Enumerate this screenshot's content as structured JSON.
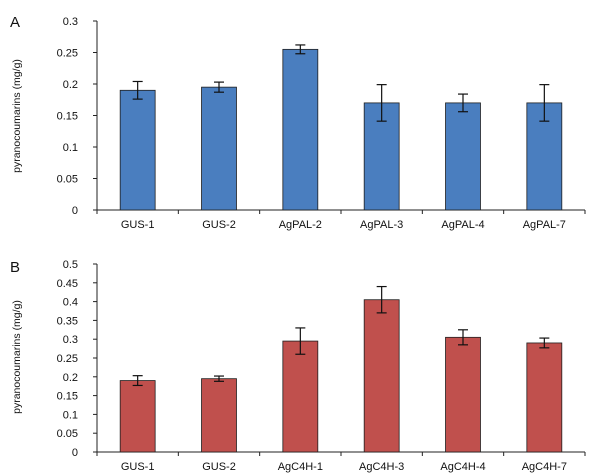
{
  "chart_data": [
    {
      "type": "bar",
      "panel": "A",
      "categories": [
        "GUS-1",
        "GUS-2",
        "AgPAL-2",
        "AgPAL-3",
        "AgPAL-4",
        "AgPAL-7"
      ],
      "values": [
        0.19,
        0.195,
        0.255,
        0.17,
        0.17,
        0.17
      ],
      "errors": [
        0.014,
        0.008,
        0.007,
        0.029,
        0.014,
        0.029
      ],
      "ylabel": "pyranocoumarins (mg/g)",
      "ylim": [
        0,
        0.3
      ],
      "yticks": [
        "0",
        "0.05",
        "0.1",
        "0.15",
        "0.2",
        "0.25",
        "0.3"
      ],
      "bar_color": "#4a7ebf",
      "grid": false
    },
    {
      "type": "bar",
      "panel": "B",
      "categories": [
        "GUS-1",
        "GUS-2",
        "AgC4H-1",
        "AgC4H-3",
        "AgC4H-4",
        "AgC4H-7"
      ],
      "values": [
        0.19,
        0.195,
        0.295,
        0.405,
        0.305,
        0.29
      ],
      "errors": [
        0.013,
        0.007,
        0.035,
        0.035,
        0.02,
        0.013
      ],
      "ylabel": "pyranocoumarins (mg/g)",
      "ylim": [
        0,
        0.5
      ],
      "yticks": [
        "0",
        "0.05",
        "0.1",
        "0.15",
        "0.2",
        "0.25",
        "0.3",
        "0.35",
        "0.4",
        "0.45",
        "0.5"
      ],
      "bar_color": "#c0504d",
      "grid": false
    }
  ]
}
